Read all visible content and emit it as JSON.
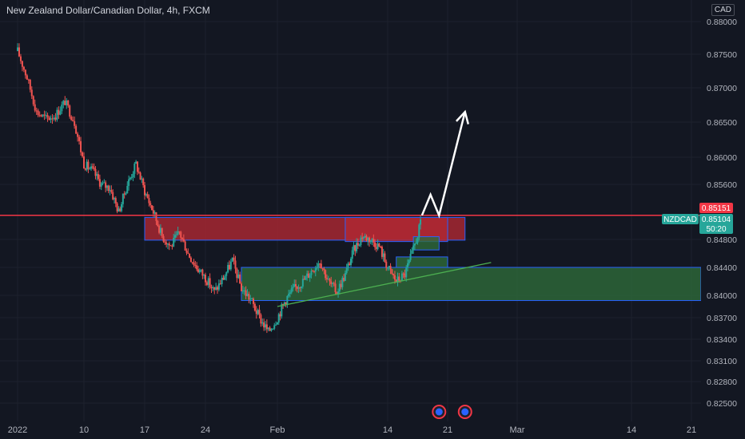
{
  "header": {
    "title": "New Zealand Dollar/Canadian Dollar, 4h, FXCM",
    "currency": "CAD"
  },
  "price_tags": {
    "resistance": "0.85151",
    "symbol": "NZDCAD",
    "last": "0.85104",
    "countdown": "50:20"
  },
  "colors": {
    "background": "#131722",
    "up": "#26a69a",
    "down": "#ef5350",
    "resistance_line": "#f23645",
    "supply_zone": "#b22833",
    "demand_zone": "#2e6b3a",
    "zone_border": "#2962ff",
    "trendline": "#4caf50",
    "projection": "#ffffff"
  },
  "chart_data": {
    "type": "candlestick",
    "symbol": "NZDCAD",
    "timeframe": "4h",
    "source": "FXCM",
    "y_ticks": [
      0.88,
      0.875,
      0.87,
      0.865,
      0.86,
      0.856,
      0.848,
      0.844,
      0.84,
      0.837,
      0.834,
      0.831,
      0.828,
      0.825
    ],
    "y_tick_labels": [
      "0.88000",
      "0.87500",
      "0.87000",
      "0.86500",
      "0.86000",
      "0.85600",
      "0.84800",
      "0.84400",
      "0.84000",
      "0.83700",
      "0.83400",
      "0.83100",
      "0.82800",
      "0.82500"
    ],
    "x_tick_labels": [
      "2022",
      "10",
      "17",
      "24",
      "Feb",
      "14",
      "21",
      "Mar",
      "14",
      "21"
    ],
    "x_tick_dates": [
      "2022-01-03",
      "2022-01-10",
      "2022-01-17",
      "2022-01-24",
      "2022-02-01",
      "2022-02-14",
      "2022-02-21",
      "2022-03-01",
      "2022-03-14",
      "2022-03-21"
    ],
    "horizontal_line": 0.85151,
    "last_price": 0.85104,
    "path": [
      [
        "2022-01-03",
        0.8755
      ],
      [
        "2022-01-04",
        0.8715
      ],
      [
        "2022-01-05",
        0.8665
      ],
      [
        "2022-01-06",
        0.8655
      ],
      [
        "2022-01-07",
        0.866
      ],
      [
        "2022-01-08",
        0.868
      ],
      [
        "2022-01-09",
        0.865
      ],
      [
        "2022-01-10",
        0.859
      ],
      [
        "2022-01-11",
        0.858
      ],
      [
        "2022-01-12",
        0.856
      ],
      [
        "2022-01-13",
        0.8555
      ],
      [
        "2022-01-14",
        0.852
      ],
      [
        "2022-01-15",
        0.856
      ],
      [
        "2022-01-16",
        0.859
      ],
      [
        "2022-01-17",
        0.855
      ],
      [
        "2022-01-18",
        0.852
      ],
      [
        "2022-01-19",
        0.8485
      ],
      [
        "2022-01-20",
        0.847
      ],
      [
        "2022-01-21",
        0.849
      ],
      [
        "2022-01-22",
        0.846
      ],
      [
        "2022-01-23",
        0.844
      ],
      [
        "2022-01-24",
        0.8425
      ],
      [
        "2022-01-25",
        0.8405
      ],
      [
        "2022-01-26",
        0.8425
      ],
      [
        "2022-01-27",
        0.845
      ],
      [
        "2022-01-28",
        0.841
      ],
      [
        "2022-01-29",
        0.8395
      ],
      [
        "2022-01-30",
        0.837
      ],
      [
        "2022-01-31",
        0.835
      ],
      [
        "2022-02-01",
        0.837
      ],
      [
        "2022-02-02",
        0.8395
      ],
      [
        "2022-02-03",
        0.841
      ],
      [
        "2022-02-04",
        0.842
      ],
      [
        "2022-02-05",
        0.8435
      ],
      [
        "2022-02-06",
        0.845
      ],
      [
        "2022-02-07",
        0.842
      ],
      [
        "2022-02-08",
        0.8405
      ],
      [
        "2022-02-09",
        0.843
      ],
      [
        "2022-02-10",
        0.8465
      ],
      [
        "2022-02-11",
        0.8485
      ],
      [
        "2022-02-12",
        0.848
      ],
      [
        "2022-02-13",
        0.847
      ],
      [
        "2022-02-14",
        0.844
      ],
      [
        "2022-02-15",
        0.842
      ],
      [
        "2022-02-16",
        0.843
      ],
      [
        "2022-02-17",
        0.8465
      ],
      [
        "2022-02-18",
        0.851
      ]
    ],
    "zones": [
      {
        "type": "supply",
        "from": "2022-01-17",
        "to": "2022-02-23",
        "low": 0.8479,
        "high": 0.8512
      },
      {
        "type": "supply",
        "from": "2022-02-09",
        "to": "2022-02-21",
        "low": 0.8477,
        "high": 0.8512
      },
      {
        "type": "demand",
        "from": "2022-01-28",
        "to": "2022-03-31",
        "low": 0.8393,
        "high": 0.844
      },
      {
        "type": "demand",
        "from": "2022-02-15",
        "to": "2022-02-21",
        "low": 0.844,
        "high": 0.8455
      },
      {
        "type": "demand",
        "from": "2022-02-17",
        "to": "2022-02-20",
        "low": 0.8465,
        "high": 0.8484
      }
    ],
    "trendline": [
      [
        "2022-02-01",
        0.8385
      ],
      [
        "2022-02-26",
        0.8447
      ]
    ],
    "projection": [
      [
        "2022-02-18",
        0.8515
      ],
      [
        "2022-02-19",
        0.8545
      ],
      [
        "2022-02-20",
        0.8515
      ],
      [
        "2022-02-23",
        0.8665
      ]
    ],
    "events": [
      "2022-02-20",
      "2022-02-23"
    ]
  }
}
